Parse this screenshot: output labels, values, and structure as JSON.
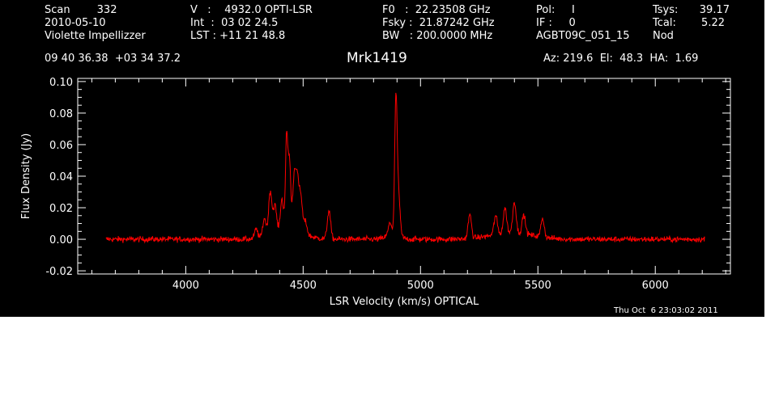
{
  "header": {
    "col1": [
      "Scan        332",
      "2010-05-10",
      "Violette Impellizzer"
    ],
    "col2": [
      "V   :    4932.0 OPTI-LSR",
      "Int  :  03 02 24.5",
      "LST : +11 21 48.8"
    ],
    "col3": [
      "F0   :  22.23508 GHz",
      "Fsky :  21.87242 GHz",
      "BW   : 200.0000 MHz"
    ],
    "col4": [
      "Pol:     I",
      "IF :     0",
      "AGBT09C_051_15"
    ],
    "col5_labels": [
      "Tsys:",
      "Tcal:",
      "Nod"
    ],
    "col5_values": [
      "39.17",
      "5.22"
    ],
    "coords": "09 40 36.38  +03 34 37.2",
    "source": "Mrk1419",
    "pointing": "Az: 219.6  El:  48.3  HA:  1.69",
    "timestamp": "Thu Oct  6 23:03:02 2011"
  },
  "chart_data": {
    "type": "line",
    "title": "Mrk1419",
    "xlabel": "LSR Velocity (km/s) OPTICAL",
    "ylabel": "Flux Density (Jy)",
    "xlim": [
      3540,
      6320
    ],
    "ylim": [
      -0.022,
      0.102
    ],
    "xticks": [
      4000,
      4500,
      5000,
      5500,
      6000
    ],
    "xtick_labels": [
      "4000",
      "4500",
      "5000",
      "5500",
      "6000"
    ],
    "yticks": [
      -0.02,
      0.0,
      0.02,
      0.04,
      0.06,
      0.08,
      0.1
    ],
    "ytick_labels": [
      "-0.02",
      "0.00",
      "0.02",
      "0.04",
      "0.06",
      "0.08",
      "0.10"
    ],
    "grid": false,
    "series_color": "#ff0000",
    "x_range": [
      3660,
      6210
    ],
    "noise_rms": 0.0013,
    "features": [
      {
        "x": 4300,
        "y": 0.006
      },
      {
        "x": 4335,
        "y": 0.012
      },
      {
        "x": 4360,
        "y": 0.028
      },
      {
        "x": 4380,
        "y": 0.018
      },
      {
        "x": 4410,
        "y": 0.02
      },
      {
        "x": 4430,
        "y": 0.06
      },
      {
        "x": 4442,
        "y": 0.043
      },
      {
        "x": 4462,
        "y": 0.032
      },
      {
        "x": 4475,
        "y": 0.03
      },
      {
        "x": 4490,
        "y": 0.022
      },
      {
        "x": 4510,
        "y": 0.008
      },
      {
        "x": 4610,
        "y": 0.018
      },
      {
        "x": 4870,
        "y": 0.007
      },
      {
        "x": 4895,
        "y": 0.079
      },
      {
        "x": 4905,
        "y": 0.028
      },
      {
        "x": 5210,
        "y": 0.015
      },
      {
        "x": 5320,
        "y": 0.012
      },
      {
        "x": 5360,
        "y": 0.016
      },
      {
        "x": 5400,
        "y": 0.02
      },
      {
        "x": 5440,
        "y": 0.012
      },
      {
        "x": 5520,
        "y": 0.012
      }
    ]
  }
}
